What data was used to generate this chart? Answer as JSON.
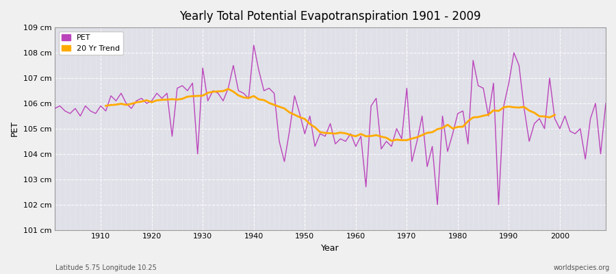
{
  "title": "Yearly Total Potential Evapotranspiration 1901 - 2009",
  "xlabel": "Year",
  "ylabel": "PET",
  "subtitle_left": "Latitude 5.75 Longitude 10.25",
  "subtitle_right": "worldspecies.org",
  "ylim": [
    101,
    109
  ],
  "yticks": [
    101,
    102,
    103,
    104,
    105,
    106,
    107,
    108,
    109
  ],
  "ytick_labels": [
    "101 cm",
    "102 cm",
    "103 cm",
    "104 cm",
    "105 cm",
    "106 cm",
    "107 cm",
    "108 cm",
    "109 cm"
  ],
  "xlim": [
    1901,
    2009
  ],
  "xticks": [
    1910,
    1920,
    1930,
    1940,
    1950,
    1960,
    1970,
    1980,
    1990,
    2000
  ],
  "pet_color": "#bb44bb",
  "trend_color": "#ffaa00",
  "background_color": "#f0f0f0",
  "plot_bg_color": "#e0e0e8",
  "legend_loc": "upper left",
  "trend_window": 20,
  "years": [
    1901,
    1902,
    1903,
    1904,
    1905,
    1906,
    1907,
    1908,
    1909,
    1910,
    1911,
    1912,
    1913,
    1914,
    1915,
    1916,
    1917,
    1918,
    1919,
    1920,
    1921,
    1922,
    1923,
    1924,
    1925,
    1926,
    1927,
    1928,
    1929,
    1930,
    1931,
    1932,
    1933,
    1934,
    1935,
    1936,
    1937,
    1938,
    1939,
    1940,
    1941,
    1942,
    1943,
    1944,
    1945,
    1946,
    1947,
    1948,
    1949,
    1950,
    1951,
    1952,
    1953,
    1954,
    1955,
    1956,
    1957,
    1958,
    1959,
    1960,
    1961,
    1962,
    1963,
    1964,
    1965,
    1966,
    1967,
    1968,
    1969,
    1970,
    1971,
    1972,
    1973,
    1974,
    1975,
    1976,
    1977,
    1978,
    1979,
    1980,
    1981,
    1982,
    1983,
    1984,
    1985,
    1986,
    1987,
    1988,
    1989,
    1990,
    1991,
    1992,
    1993,
    1994,
    1995,
    1996,
    1997,
    1998,
    1999,
    2000,
    2001,
    2002,
    2003,
    2004,
    2005,
    2006,
    2007,
    2008,
    2009
  ],
  "pet_values": [
    105.8,
    105.9,
    105.7,
    105.6,
    105.8,
    105.5,
    105.9,
    105.7,
    105.6,
    105.9,
    105.7,
    106.3,
    106.1,
    106.4,
    106.0,
    105.8,
    106.1,
    106.2,
    106.0,
    106.1,
    106.4,
    106.2,
    106.4,
    104.7,
    106.6,
    106.7,
    106.5,
    106.8,
    104.0,
    107.4,
    106.1,
    106.5,
    106.4,
    106.1,
    106.6,
    107.5,
    106.5,
    106.4,
    106.2,
    108.3,
    107.3,
    106.5,
    106.6,
    106.4,
    104.5,
    103.7,
    104.9,
    106.3,
    105.6,
    104.8,
    105.5,
    104.3,
    104.8,
    104.7,
    105.2,
    104.4,
    104.6,
    104.5,
    104.8,
    104.3,
    104.7,
    102.7,
    105.9,
    106.2,
    104.2,
    104.5,
    104.3,
    105.0,
    104.6,
    106.6,
    103.7,
    104.5,
    105.5,
    103.5,
    104.3,
    102.0,
    105.5,
    104.1,
    104.8,
    105.6,
    105.7,
    104.4,
    107.7,
    106.7,
    106.6,
    105.5,
    106.8,
    102.0,
    105.9,
    106.8,
    108.0,
    107.5,
    105.8,
    104.5,
    105.2,
    105.4,
    105.0,
    107.0,
    105.4,
    105.0,
    105.5,
    104.9,
    104.8,
    105.0,
    103.8,
    105.4,
    106.0,
    104.0,
    106.0
  ]
}
